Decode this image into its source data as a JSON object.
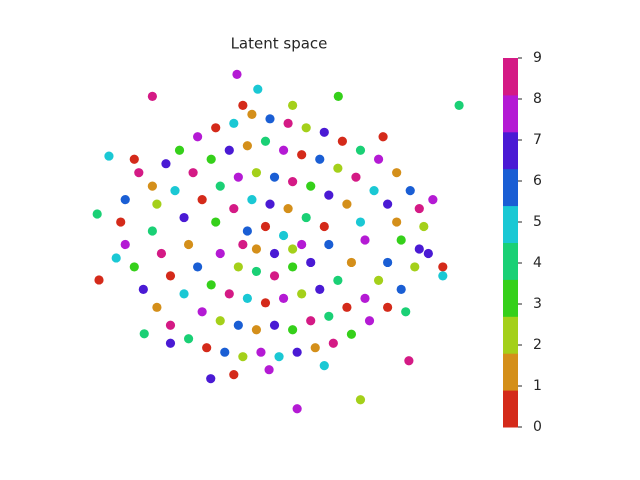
{
  "chart_data": {
    "type": "scatter",
    "title": "Latent space",
    "xlim": [
      -4.2,
      4.2
    ],
    "ylim": [
      -4.1,
      4.1
    ],
    "clim": [
      0,
      9
    ],
    "cticks": [
      0,
      1,
      2,
      3,
      4,
      5,
      6,
      7,
      8,
      9
    ],
    "colors": [
      "#d42a1a",
      "#d48f1a",
      "#a4d01a",
      "#35d01a",
      "#1ad075",
      "#1ac8d4",
      "#1a5ed4",
      "#4a1ad4",
      "#b41ad4",
      "#d41a85"
    ],
    "points": [
      [
        -0.73,
        3.69,
        8
      ],
      [
        4.18,
        3.0,
        4
      ],
      [
        -3.82,
        0.58,
        4
      ],
      [
        -3.78,
        -0.89,
        0
      ],
      [
        0.6,
        -3.76,
        8
      ],
      [
        2.0,
        -3.56,
        2
      ],
      [
        -1.31,
        -3.09,
        7
      ],
      [
        -0.8,
        -3.0,
        0
      ],
      [
        -2.6,
        3.2,
        9
      ],
      [
        3.82,
        -0.6,
        0
      ],
      [
        3.82,
        -0.8,
        5
      ],
      [
        -3.56,
        1.87,
        5
      ],
      [
        -2.78,
        -2.09,
        4
      ],
      [
        -0.27,
        3.36,
        5
      ],
      [
        1.51,
        3.2,
        3
      ],
      [
        -0.02,
        -2.89,
        8
      ],
      [
        3.07,
        -2.69,
        9
      ],
      [
        -2.9,
        1.5,
        9
      ],
      [
        -2.6,
        1.2,
        1
      ],
      [
        -2.3,
        1.7,
        7
      ],
      [
        -2.0,
        2.0,
        3
      ],
      [
        -1.6,
        2.3,
        8
      ],
      [
        -1.2,
        2.5,
        0
      ],
      [
        -0.8,
        2.6,
        5
      ],
      [
        -0.4,
        2.8,
        1
      ],
      [
        0.0,
        2.7,
        6
      ],
      [
        0.4,
        2.6,
        9
      ],
      [
        0.8,
        2.5,
        2
      ],
      [
        1.2,
        2.4,
        7
      ],
      [
        1.6,
        2.2,
        0
      ],
      [
        2.0,
        2.0,
        4
      ],
      [
        2.4,
        1.8,
        8
      ],
      [
        2.8,
        1.5,
        1
      ],
      [
        3.1,
        1.1,
        6
      ],
      [
        3.3,
        0.7,
        9
      ],
      [
        3.4,
        0.3,
        2
      ],
      [
        -3.2,
        0.9,
        6
      ],
      [
        -3.3,
        0.4,
        0
      ],
      [
        -3.2,
        -0.1,
        8
      ],
      [
        -3.0,
        -0.6,
        3
      ],
      [
        -2.8,
        -1.1,
        7
      ],
      [
        -2.5,
        -1.5,
        1
      ],
      [
        -2.2,
        -1.9,
        9
      ],
      [
        -1.8,
        -2.2,
        4
      ],
      [
        -1.4,
        -2.4,
        0
      ],
      [
        -1.0,
        -2.5,
        6
      ],
      [
        -0.6,
        -2.6,
        2
      ],
      [
        -0.2,
        -2.5,
        8
      ],
      [
        0.2,
        -2.6,
        5
      ],
      [
        0.6,
        -2.5,
        7
      ],
      [
        1.0,
        -2.4,
        1
      ],
      [
        1.4,
        -2.3,
        9
      ],
      [
        1.8,
        -2.1,
        3
      ],
      [
        2.2,
        -1.8,
        8
      ],
      [
        2.6,
        -1.5,
        0
      ],
      [
        2.9,
        -1.1,
        6
      ],
      [
        3.2,
        -0.6,
        2
      ],
      [
        3.3,
        -0.2,
        7
      ],
      [
        -2.5,
        0.8,
        2
      ],
      [
        -2.1,
        1.1,
        5
      ],
      [
        -1.7,
        1.5,
        9
      ],
      [
        -1.3,
        1.8,
        3
      ],
      [
        -0.9,
        2.0,
        7
      ],
      [
        -0.5,
        2.1,
        1
      ],
      [
        -0.1,
        2.2,
        4
      ],
      [
        0.3,
        2.0,
        8
      ],
      [
        0.7,
        1.9,
        0
      ],
      [
        1.1,
        1.8,
        6
      ],
      [
        1.5,
        1.6,
        2
      ],
      [
        1.9,
        1.4,
        9
      ],
      [
        2.3,
        1.1,
        5
      ],
      [
        2.6,
        0.8,
        7
      ],
      [
        2.8,
        0.4,
        1
      ],
      [
        2.9,
        0.0,
        3
      ],
      [
        -2.6,
        0.2,
        4
      ],
      [
        -2.4,
        -0.3,
        9
      ],
      [
        -2.2,
        -0.8,
        0
      ],
      [
        -1.9,
        -1.2,
        5
      ],
      [
        -1.5,
        -1.6,
        8
      ],
      [
        -1.1,
        -1.8,
        2
      ],
      [
        -0.7,
        -1.9,
        6
      ],
      [
        -0.3,
        -2.0,
        1
      ],
      [
        0.1,
        -1.9,
        7
      ],
      [
        0.5,
        -2.0,
        3
      ],
      [
        0.9,
        -1.8,
        9
      ],
      [
        1.3,
        -1.7,
        4
      ],
      [
        1.7,
        -1.5,
        0
      ],
      [
        2.1,
        -1.3,
        8
      ],
      [
        2.4,
        -0.9,
        2
      ],
      [
        2.6,
        -0.5,
        6
      ],
      [
        -1.9,
        0.5,
        7
      ],
      [
        -1.5,
        0.9,
        0
      ],
      [
        -1.1,
        1.2,
        4
      ],
      [
        -0.7,
        1.4,
        8
      ],
      [
        -0.3,
        1.5,
        2
      ],
      [
        0.1,
        1.4,
        6
      ],
      [
        0.5,
        1.3,
        9
      ],
      [
        0.9,
        1.2,
        3
      ],
      [
        1.3,
        1.0,
        7
      ],
      [
        1.7,
        0.8,
        1
      ],
      [
        2.0,
        0.4,
        5
      ],
      [
        2.1,
        0.0,
        8
      ],
      [
        -1.8,
        -0.1,
        1
      ],
      [
        -1.6,
        -0.6,
        6
      ],
      [
        -1.3,
        -1.0,
        3
      ],
      [
        -0.9,
        -1.2,
        9
      ],
      [
        -0.5,
        -1.3,
        5
      ],
      [
        -0.1,
        -1.4,
        0
      ],
      [
        0.3,
        -1.3,
        8
      ],
      [
        0.7,
        -1.2,
        2
      ],
      [
        1.1,
        -1.1,
        7
      ],
      [
        1.5,
        -0.9,
        4
      ],
      [
        1.8,
        -0.5,
        1
      ],
      [
        -1.2,
        0.4,
        3
      ],
      [
        -0.8,
        0.7,
        9
      ],
      [
        -0.4,
        0.9,
        5
      ],
      [
        0.0,
        0.8,
        7
      ],
      [
        0.4,
        0.7,
        1
      ],
      [
        0.8,
        0.5,
        4
      ],
      [
        1.2,
        0.3,
        0
      ],
      [
        1.3,
        -0.1,
        6
      ],
      [
        -1.1,
        -0.3,
        8
      ],
      [
        -0.7,
        -0.6,
        2
      ],
      [
        -0.3,
        -0.7,
        4
      ],
      [
        0.1,
        -0.8,
        9
      ],
      [
        0.5,
        -0.6,
        3
      ],
      [
        0.9,
        -0.5,
        7
      ],
      [
        -0.5,
        0.2,
        6
      ],
      [
        -0.1,
        0.3,
        0
      ],
      [
        0.3,
        0.1,
        5
      ],
      [
        0.7,
        -0.1,
        8
      ],
      [
        -0.3,
        -0.2,
        1
      ],
      [
        0.1,
        -0.3,
        7
      ],
      [
        0.5,
        -0.2,
        2
      ],
      [
        -0.6,
        -0.1,
        9
      ],
      [
        -3.0,
        1.8,
        0
      ],
      [
        3.6,
        0.9,
        8
      ],
      [
        3.5,
        -0.3,
        7
      ],
      [
        -3.4,
        -0.4,
        5
      ],
      [
        2.5,
        2.3,
        0
      ],
      [
        -2.2,
        -2.3,
        7
      ],
      [
        1.2,
        -2.8,
        5
      ],
      [
        -0.6,
        3.0,
        0
      ],
      [
        0.5,
        3.0,
        2
      ],
      [
        3.0,
        -1.6,
        4
      ]
    ]
  }
}
